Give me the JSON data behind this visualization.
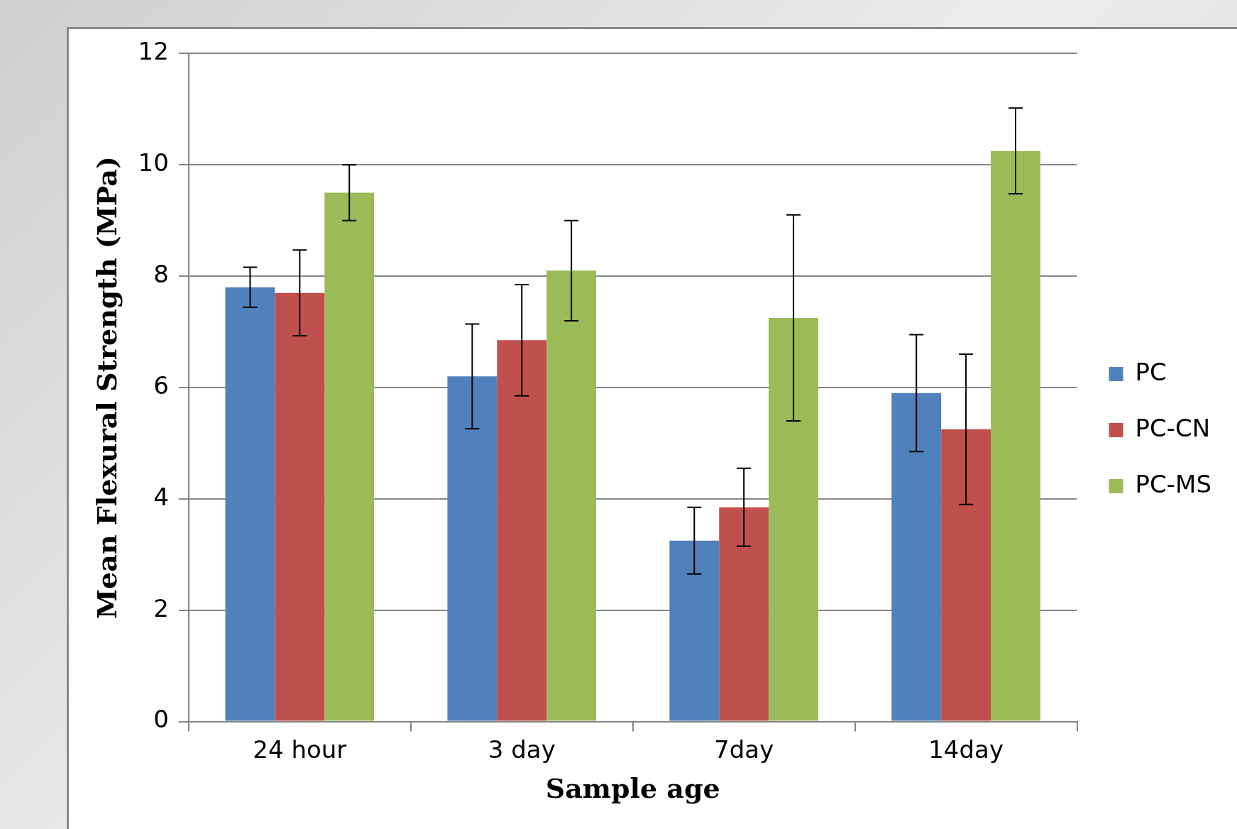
{
  "chart_data": {
    "type": "bar",
    "xlabel": "Sample age",
    "ylabel": "Mean Flexural Strength (MPa)",
    "categories": [
      "24 hour",
      "3 day",
      "7day",
      "14day"
    ],
    "series": [
      {
        "name": "PC",
        "color": "#4f81bd",
        "values": [
          7.8,
          6.2,
          3.25,
          5.9
        ],
        "errors": [
          0.36,
          0.94,
          0.6,
          1.05
        ]
      },
      {
        "name": "PC-CN",
        "color": "#c0504d",
        "values": [
          7.7,
          6.85,
          3.85,
          5.25
        ],
        "errors": [
          0.77,
          1.0,
          0.7,
          1.35
        ]
      },
      {
        "name": "PC-MS",
        "color": "#9bbb59",
        "values": [
          9.5,
          8.1,
          7.25,
          10.25
        ],
        "errors": [
          0.5,
          0.9,
          1.85,
          0.77
        ]
      }
    ],
    "ylim": [
      0,
      12
    ],
    "yticks": [
      0,
      2,
      4,
      6,
      8,
      10,
      12
    ],
    "grid": "y",
    "legend": "right"
  }
}
